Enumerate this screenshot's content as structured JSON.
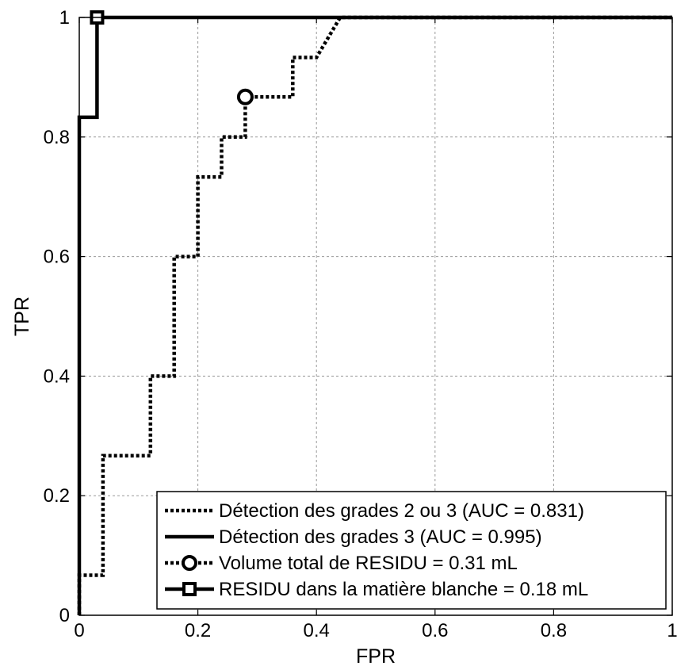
{
  "chart_data": {
    "type": "line",
    "xlabel": "FPR",
    "ylabel": "TPR",
    "xlim": [
      0,
      1
    ],
    "ylim": [
      0,
      1
    ],
    "xticks": [
      0,
      0.2,
      0.4,
      0.6,
      0.8,
      1
    ],
    "yticks": [
      0,
      0.2,
      0.4,
      0.6,
      0.8,
      1
    ],
    "xtick_labels": [
      "0",
      "0.2",
      "0.4",
      "0.6",
      "0.8",
      "1"
    ],
    "ytick_labels": [
      "0",
      "0.2",
      "0.4",
      "0.6",
      "0.8",
      "1"
    ],
    "grid": true,
    "legend_position": "bottom-right",
    "series": [
      {
        "name": "Détection des grades 2 ou 3 (AUC = 0.831)",
        "style": "dotted",
        "color": "#000000",
        "x": [
          0,
          0,
          0.04,
          0.04,
          0.12,
          0.12,
          0.16,
          0.16,
          0.2,
          0.2,
          0.24,
          0.24,
          0.28,
          0.28,
          0.36,
          0.36,
          0.4,
          0.44,
          1
        ],
        "y": [
          0,
          0.067,
          0.067,
          0.267,
          0.267,
          0.4,
          0.4,
          0.6,
          0.6,
          0.733,
          0.733,
          0.8,
          0.8,
          0.867,
          0.867,
          0.933,
          0.933,
          1,
          1
        ]
      },
      {
        "name": "Détection des grades 3 (AUC = 0.995)",
        "style": "solid",
        "color": "#000000",
        "x": [
          0,
          0,
          0.03,
          0.03,
          1
        ],
        "y": [
          0,
          0.833,
          0.833,
          1,
          1
        ]
      }
    ],
    "markers": [
      {
        "name": "Volume total de RESIDU = 0.31 mL",
        "shape": "circle",
        "line_style": "dotted",
        "x": 0.28,
        "y": 0.867
      },
      {
        "name": "RESIDU dans la matière blanche = 0.18 mL",
        "shape": "square",
        "line_style": "solid",
        "x": 0.03,
        "y": 1
      }
    ]
  }
}
